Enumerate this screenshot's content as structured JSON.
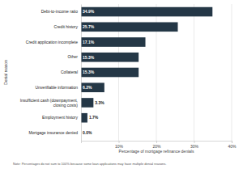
{
  "chart_data": {
    "type": "bar",
    "orientation": "horizontal",
    "categories": [
      "Debt-to-income ratio",
      "Credit history",
      "Credit application incomplete",
      "Other",
      "Collateral",
      "Unverifiable information",
      "Insufficient cash (downpayment, closing costs)",
      "Employment history",
      "Mortgage insurance denied"
    ],
    "values": [
      34.9,
      25.7,
      17.1,
      15.3,
      15.3,
      6.2,
      3.3,
      1.7,
      0.0
    ],
    "value_labels": [
      "34.9%",
      "25.7%",
      "17.1%",
      "15.3%",
      "15.3%",
      "6.2%",
      "3.3%",
      "1.7%",
      "0.0%"
    ],
    "color": "#243746",
    "x_label": "Percentage of mortgage refinance denials",
    "y_label": "Denial reason",
    "note": "Note: Percentages do not sum to 100% because some loan applications may have multiple denial reasons.",
    "xlim": [
      0,
      40
    ],
    "xticks": [
      {
        "value": 10,
        "label": "10%"
      },
      {
        "value": 20,
        "label": "20%"
      },
      {
        "value": 30,
        "label": "30%"
      },
      {
        "value": 40,
        "label": "40%"
      }
    ],
    "grid": true,
    "data_labels": true
  }
}
